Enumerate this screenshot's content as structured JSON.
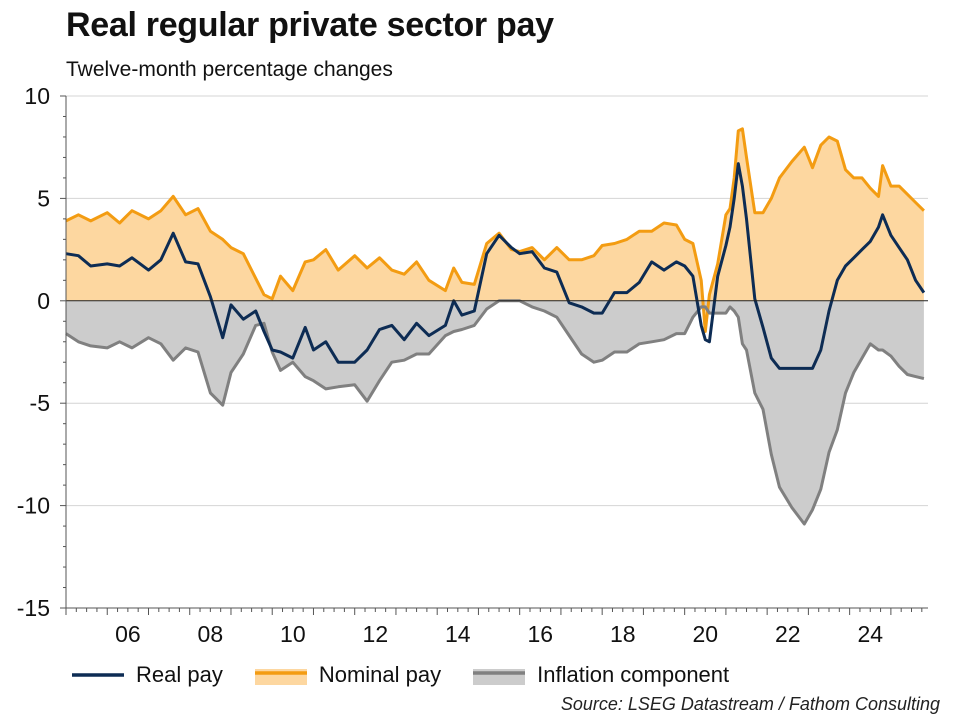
{
  "header": {
    "title": "Real regular private sector pay",
    "subtitle": "Twelve-month percentage changes"
  },
  "legend": {
    "real": "Real pay",
    "nominal": "Nominal pay",
    "inflation": "Inflation component"
  },
  "source": "Source: LSEG Datastream / Fathom Consulting",
  "colors": {
    "real": "#0d2c54",
    "nominal_line": "#f39c12",
    "nominal_fill": "#fdd7a0",
    "inflation_line": "#808080",
    "inflation_fill": "#cccccc"
  },
  "chart_data": {
    "type": "area",
    "title": "Real regular private sector pay",
    "ylabel": "Twelve-month percentage changes",
    "xlim": [
      2005.0,
      2025.9
    ],
    "ylim": [
      -15,
      10
    ],
    "yticks": [
      10,
      5,
      0,
      -5,
      -10,
      -15
    ],
    "ytick_labels": [
      "10",
      "5",
      "0",
      "-5",
      "-10",
      "-15"
    ],
    "xticks": [
      2006,
      2008,
      2010,
      2012,
      2014,
      2016,
      2018,
      2020,
      2022,
      2024
    ],
    "xtick_labels": [
      "06",
      "08",
      "10",
      "12",
      "14",
      "16",
      "18",
      "20",
      "22",
      "24"
    ],
    "gridlines": true,
    "legend_position": "bottom",
    "series": [
      {
        "name": "Nominal pay",
        "key": "nominal",
        "style": "area",
        "points": [
          [
            2005.0,
            3.9
          ],
          [
            2005.3,
            4.2
          ],
          [
            2005.6,
            3.9
          ],
          [
            2006.0,
            4.3
          ],
          [
            2006.3,
            3.8
          ],
          [
            2006.6,
            4.4
          ],
          [
            2007.0,
            4.0
          ],
          [
            2007.3,
            4.4
          ],
          [
            2007.6,
            5.1
          ],
          [
            2007.9,
            4.2
          ],
          [
            2008.2,
            4.5
          ],
          [
            2008.5,
            3.4
          ],
          [
            2008.8,
            3.0
          ],
          [
            2009.0,
            2.6
          ],
          [
            2009.3,
            2.3
          ],
          [
            2009.6,
            1.1
          ],
          [
            2009.8,
            0.3
          ],
          [
            2010.0,
            0.1
          ],
          [
            2010.2,
            1.2
          ],
          [
            2010.5,
            0.5
          ],
          [
            2010.8,
            1.9
          ],
          [
            2011.0,
            2.0
          ],
          [
            2011.3,
            2.5
          ],
          [
            2011.6,
            1.5
          ],
          [
            2012.0,
            2.2
          ],
          [
            2012.3,
            1.6
          ],
          [
            2012.6,
            2.1
          ],
          [
            2012.9,
            1.5
          ],
          [
            2013.2,
            1.3
          ],
          [
            2013.5,
            1.9
          ],
          [
            2013.8,
            1.0
          ],
          [
            2014.2,
            0.5
          ],
          [
            2014.4,
            1.6
          ],
          [
            2014.6,
            0.9
          ],
          [
            2014.9,
            0.8
          ],
          [
            2015.2,
            2.8
          ],
          [
            2015.5,
            3.3
          ],
          [
            2015.8,
            2.5
          ],
          [
            2016.0,
            2.4
          ],
          [
            2016.3,
            2.6
          ],
          [
            2016.6,
            2.0
          ],
          [
            2016.9,
            2.6
          ],
          [
            2017.2,
            2.0
          ],
          [
            2017.5,
            2.0
          ],
          [
            2017.8,
            2.2
          ],
          [
            2018.0,
            2.7
          ],
          [
            2018.3,
            2.8
          ],
          [
            2018.6,
            3.0
          ],
          [
            2018.9,
            3.4
          ],
          [
            2019.2,
            3.4
          ],
          [
            2019.5,
            3.8
          ],
          [
            2019.8,
            3.7
          ],
          [
            2020.0,
            3.0
          ],
          [
            2020.2,
            2.8
          ],
          [
            2020.4,
            1.0
          ],
          [
            2020.5,
            -1.5
          ],
          [
            2020.6,
            0.3
          ],
          [
            2020.8,
            1.8
          ],
          [
            2021.0,
            4.2
          ],
          [
            2021.1,
            4.5
          ],
          [
            2021.2,
            6.0
          ],
          [
            2021.3,
            8.3
          ],
          [
            2021.4,
            8.4
          ],
          [
            2021.5,
            7.0
          ],
          [
            2021.7,
            4.3
          ],
          [
            2021.9,
            4.3
          ],
          [
            2022.1,
            5.0
          ],
          [
            2022.3,
            6.0
          ],
          [
            2022.6,
            6.8
          ],
          [
            2022.9,
            7.5
          ],
          [
            2023.1,
            6.5
          ],
          [
            2023.3,
            7.6
          ],
          [
            2023.5,
            8.0
          ],
          [
            2023.7,
            7.8
          ],
          [
            2023.9,
            6.4
          ],
          [
            2024.1,
            6.0
          ],
          [
            2024.3,
            6.0
          ],
          [
            2024.5,
            5.5
          ],
          [
            2024.7,
            5.1
          ],
          [
            2024.8,
            6.6
          ],
          [
            2025.0,
            5.6
          ],
          [
            2025.2,
            5.6
          ],
          [
            2025.4,
            5.2
          ],
          [
            2025.6,
            4.8
          ],
          [
            2025.8,
            4.4
          ]
        ]
      },
      {
        "name": "Inflation component",
        "key": "inflation",
        "style": "area",
        "points": [
          [
            2005.0,
            -1.6
          ],
          [
            2005.3,
            -2.0
          ],
          [
            2005.6,
            -2.2
          ],
          [
            2006.0,
            -2.3
          ],
          [
            2006.3,
            -2.0
          ],
          [
            2006.6,
            -2.3
          ],
          [
            2007.0,
            -1.8
          ],
          [
            2007.3,
            -2.1
          ],
          [
            2007.6,
            -2.9
          ],
          [
            2007.9,
            -2.3
          ],
          [
            2008.2,
            -2.5
          ],
          [
            2008.5,
            -4.5
          ],
          [
            2008.8,
            -5.1
          ],
          [
            2009.0,
            -3.5
          ],
          [
            2009.3,
            -2.6
          ],
          [
            2009.6,
            -1.2
          ],
          [
            2009.8,
            -1.1
          ],
          [
            2010.0,
            -2.5
          ],
          [
            2010.2,
            -3.4
          ],
          [
            2010.5,
            -3.0
          ],
          [
            2010.8,
            -3.7
          ],
          [
            2011.0,
            -3.9
          ],
          [
            2011.3,
            -4.3
          ],
          [
            2011.6,
            -4.2
          ],
          [
            2012.0,
            -4.1
          ],
          [
            2012.3,
            -4.9
          ],
          [
            2012.6,
            -3.9
          ],
          [
            2012.9,
            -3.0
          ],
          [
            2013.2,
            -2.9
          ],
          [
            2013.5,
            -2.6
          ],
          [
            2013.8,
            -2.6
          ],
          [
            2014.2,
            -1.7
          ],
          [
            2014.4,
            -1.5
          ],
          [
            2014.6,
            -1.4
          ],
          [
            2014.9,
            -1.2
          ],
          [
            2015.2,
            -0.4
          ],
          [
            2015.5,
            0.0
          ],
          [
            2015.8,
            0.0
          ],
          [
            2016.0,
            0.0
          ],
          [
            2016.3,
            -0.3
          ],
          [
            2016.6,
            -0.5
          ],
          [
            2016.9,
            -0.8
          ],
          [
            2017.2,
            -1.7
          ],
          [
            2017.5,
            -2.6
          ],
          [
            2017.8,
            -3.0
          ],
          [
            2018.0,
            -2.9
          ],
          [
            2018.3,
            -2.5
          ],
          [
            2018.6,
            -2.5
          ],
          [
            2018.9,
            -2.1
          ],
          [
            2019.2,
            -2.0
          ],
          [
            2019.5,
            -1.9
          ],
          [
            2019.8,
            -1.6
          ],
          [
            2020.0,
            -1.6
          ],
          [
            2020.2,
            -0.8
          ],
          [
            2020.4,
            -0.3
          ],
          [
            2020.5,
            -0.3
          ],
          [
            2020.6,
            -0.6
          ],
          [
            2020.8,
            -0.6
          ],
          [
            2021.0,
            -0.6
          ],
          [
            2021.1,
            -0.3
          ],
          [
            2021.2,
            -0.5
          ],
          [
            2021.3,
            -0.8
          ],
          [
            2021.4,
            -2.1
          ],
          [
            2021.5,
            -2.4
          ],
          [
            2021.7,
            -4.5
          ],
          [
            2021.9,
            -5.3
          ],
          [
            2022.1,
            -7.5
          ],
          [
            2022.3,
            -9.1
          ],
          [
            2022.6,
            -10.1
          ],
          [
            2022.9,
            -10.9
          ],
          [
            2023.1,
            -10.2
          ],
          [
            2023.3,
            -9.2
          ],
          [
            2023.5,
            -7.4
          ],
          [
            2023.7,
            -6.3
          ],
          [
            2023.9,
            -4.5
          ],
          [
            2024.1,
            -3.5
          ],
          [
            2024.3,
            -2.8
          ],
          [
            2024.5,
            -2.1
          ],
          [
            2024.7,
            -2.4
          ],
          [
            2024.8,
            -2.4
          ],
          [
            2025.0,
            -2.7
          ],
          [
            2025.2,
            -3.2
          ],
          [
            2025.4,
            -3.6
          ],
          [
            2025.6,
            -3.7
          ],
          [
            2025.8,
            -3.8
          ]
        ]
      },
      {
        "name": "Real pay",
        "key": "real",
        "style": "line",
        "points": [
          [
            2005.0,
            2.3
          ],
          [
            2005.3,
            2.2
          ],
          [
            2005.6,
            1.7
          ],
          [
            2006.0,
            1.8
          ],
          [
            2006.3,
            1.7
          ],
          [
            2006.6,
            2.1
          ],
          [
            2007.0,
            1.5
          ],
          [
            2007.3,
            2.0
          ],
          [
            2007.6,
            3.3
          ],
          [
            2007.9,
            1.9
          ],
          [
            2008.2,
            1.8
          ],
          [
            2008.5,
            0.2
          ],
          [
            2008.8,
            -1.8
          ],
          [
            2009.0,
            -0.2
          ],
          [
            2009.3,
            -0.9
          ],
          [
            2009.6,
            -0.5
          ],
          [
            2009.8,
            -1.5
          ],
          [
            2010.0,
            -2.4
          ],
          [
            2010.2,
            -2.5
          ],
          [
            2010.5,
            -2.8
          ],
          [
            2010.8,
            -1.3
          ],
          [
            2011.0,
            -2.4
          ],
          [
            2011.3,
            -2.0
          ],
          [
            2011.6,
            -3.0
          ],
          [
            2012.0,
            -3.0
          ],
          [
            2012.3,
            -2.4
          ],
          [
            2012.6,
            -1.4
          ],
          [
            2012.9,
            -1.2
          ],
          [
            2013.2,
            -1.9
          ],
          [
            2013.5,
            -1.1
          ],
          [
            2013.8,
            -1.7
          ],
          [
            2014.2,
            -1.2
          ],
          [
            2014.4,
            0.0
          ],
          [
            2014.6,
            -0.7
          ],
          [
            2014.9,
            -0.5
          ],
          [
            2015.2,
            2.3
          ],
          [
            2015.5,
            3.2
          ],
          [
            2015.8,
            2.6
          ],
          [
            2016.0,
            2.3
          ],
          [
            2016.3,
            2.4
          ],
          [
            2016.6,
            1.6
          ],
          [
            2016.9,
            1.4
          ],
          [
            2017.2,
            -0.1
          ],
          [
            2017.5,
            -0.3
          ],
          [
            2017.8,
            -0.6
          ],
          [
            2018.0,
            -0.6
          ],
          [
            2018.3,
            0.4
          ],
          [
            2018.6,
            0.4
          ],
          [
            2018.9,
            0.9
          ],
          [
            2019.2,
            1.9
          ],
          [
            2019.5,
            1.5
          ],
          [
            2019.8,
            1.9
          ],
          [
            2020.0,
            1.7
          ],
          [
            2020.2,
            1.2
          ],
          [
            2020.4,
            -1.2
          ],
          [
            2020.5,
            -1.9
          ],
          [
            2020.6,
            -2.0
          ],
          [
            2020.8,
            1.2
          ],
          [
            2021.0,
            2.7
          ],
          [
            2021.1,
            3.6
          ],
          [
            2021.2,
            5.0
          ],
          [
            2021.3,
            6.7
          ],
          [
            2021.4,
            5.6
          ],
          [
            2021.5,
            4.0
          ],
          [
            2021.7,
            0.1
          ],
          [
            2021.9,
            -1.3
          ],
          [
            2022.1,
            -2.8
          ],
          [
            2022.3,
            -3.3
          ],
          [
            2022.6,
            -3.3
          ],
          [
            2022.9,
            -3.3
          ],
          [
            2023.1,
            -3.3
          ],
          [
            2023.3,
            -2.4
          ],
          [
            2023.5,
            -0.5
          ],
          [
            2023.7,
            1.0
          ],
          [
            2023.9,
            1.7
          ],
          [
            2024.1,
            2.1
          ],
          [
            2024.3,
            2.5
          ],
          [
            2024.5,
            2.9
          ],
          [
            2024.7,
            3.6
          ],
          [
            2024.8,
            4.2
          ],
          [
            2025.0,
            3.2
          ],
          [
            2025.2,
            2.6
          ],
          [
            2025.4,
            2.0
          ],
          [
            2025.6,
            1.0
          ],
          [
            2025.8,
            0.4
          ]
        ]
      }
    ]
  }
}
